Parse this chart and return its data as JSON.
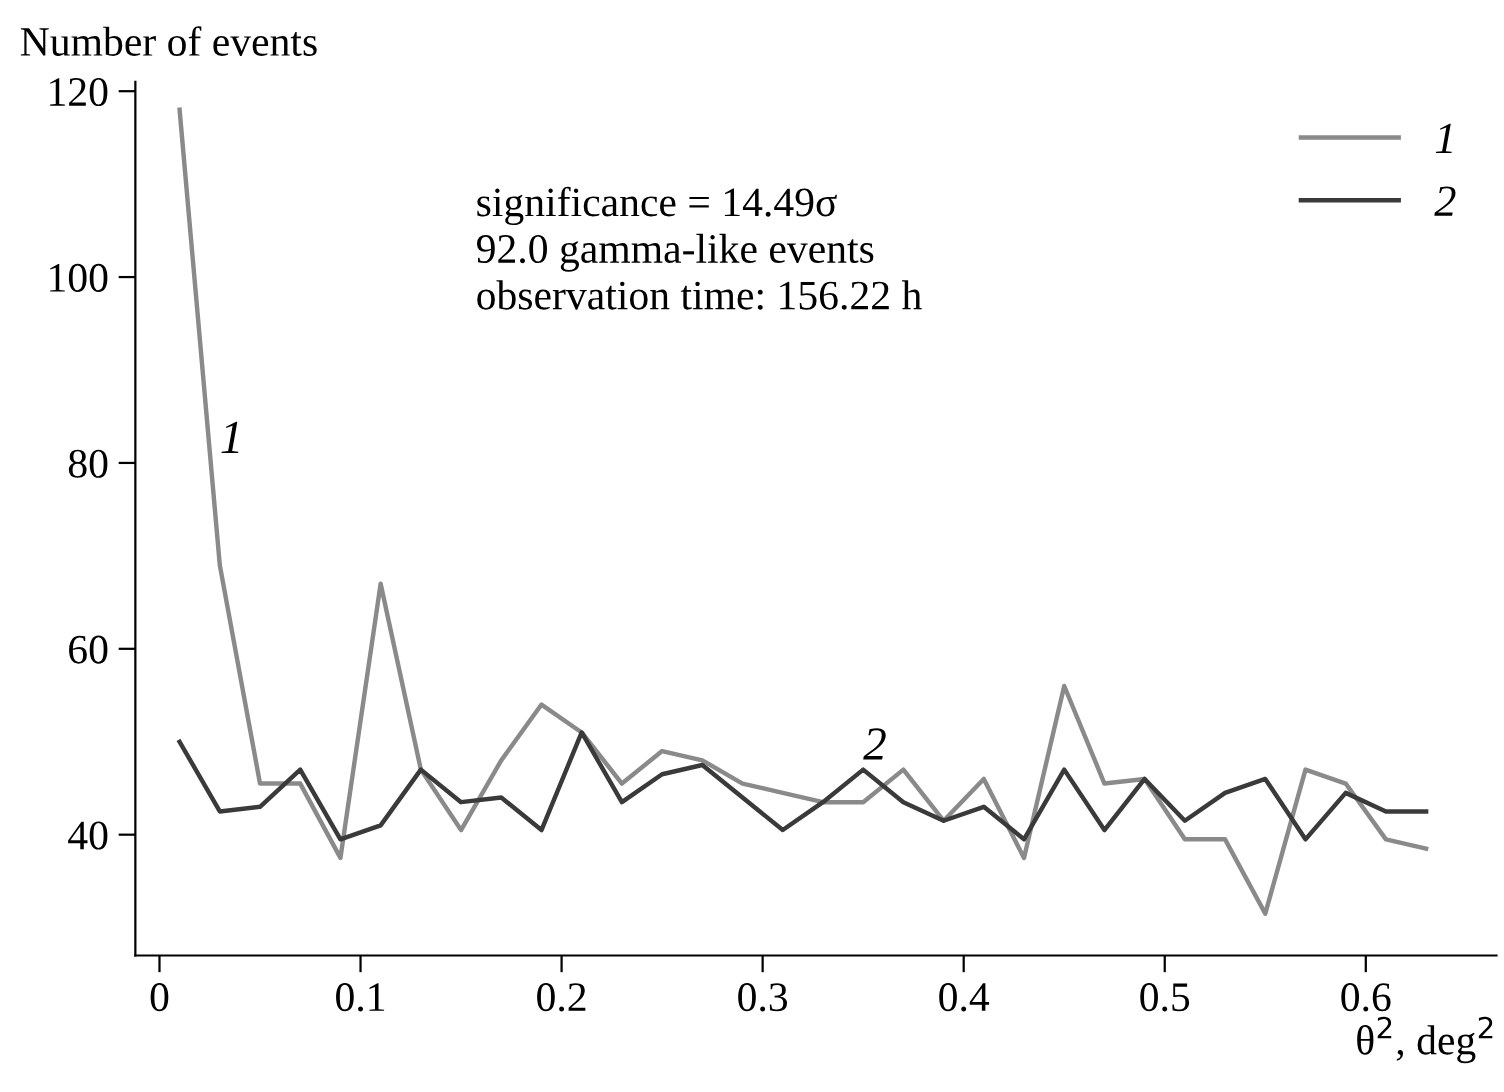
{
  "chart_data": {
    "type": "line",
    "xlabel": "θ$^{2}$, deg$^{2}$",
    "ylabel": "Number of events",
    "x": [
      0.01,
      0.03,
      0.05,
      0.07,
      0.09,
      0.11,
      0.13,
      0.15,
      0.17,
      0.19,
      0.21,
      0.23,
      0.25,
      0.27,
      0.29,
      0.31,
      0.33,
      0.35,
      0.37,
      0.39,
      0.41,
      0.43,
      0.45,
      0.47,
      0.49,
      0.51,
      0.53,
      0.55,
      0.57,
      0.59,
      0.61,
      0.63
    ],
    "series": [
      {
        "name": "1",
        "color": "#8a8a8a",
        "values": [
          118,
          69,
          45.5,
          45.5,
          37.5,
          67,
          47,
          40.5,
          48,
          54,
          51,
          45.5,
          49,
          48,
          45.5,
          44.5,
          43.5,
          43.5,
          47,
          41.5,
          46,
          37.5,
          56,
          45.5,
          46,
          39.5,
          39.5,
          31.5,
          47,
          45.5,
          39.5,
          38.5
        ]
      },
      {
        "name": "2",
        "color": "#3a3a3a",
        "values": [
          50,
          42.5,
          43,
          47,
          39.5,
          41,
          47,
          43.5,
          44,
          40.5,
          51,
          43.5,
          46.5,
          47.5,
          44,
          40.5,
          43.5,
          47,
          43.5,
          41.5,
          43,
          39.5,
          47,
          40.5,
          46,
          41.5,
          44.5,
          46,
          39.5,
          44.5,
          42.5,
          42.5
        ]
      }
    ],
    "annotations": [
      "significance = 14.49σ\n92.0 gamma-like events\nobservation time: 156.22 h",
      {
        "text": "1",
        "x": 0.03,
        "y": 80
      },
      {
        "text": "2",
        "x": 0.35,
        "y": 47
      }
    ],
    "xlim": [
      -0.012,
      0.665
    ],
    "ylim": [
      27,
      121
    ],
    "xticks": [
      0,
      0.1,
      0.2,
      0.3,
      0.4,
      0.5,
      0.6
    ],
    "yticks": [
      40,
      60,
      80,
      100,
      120
    ],
    "grid": false,
    "legend": "top right",
    "marker": "none",
    "line_style": "solid"
  }
}
